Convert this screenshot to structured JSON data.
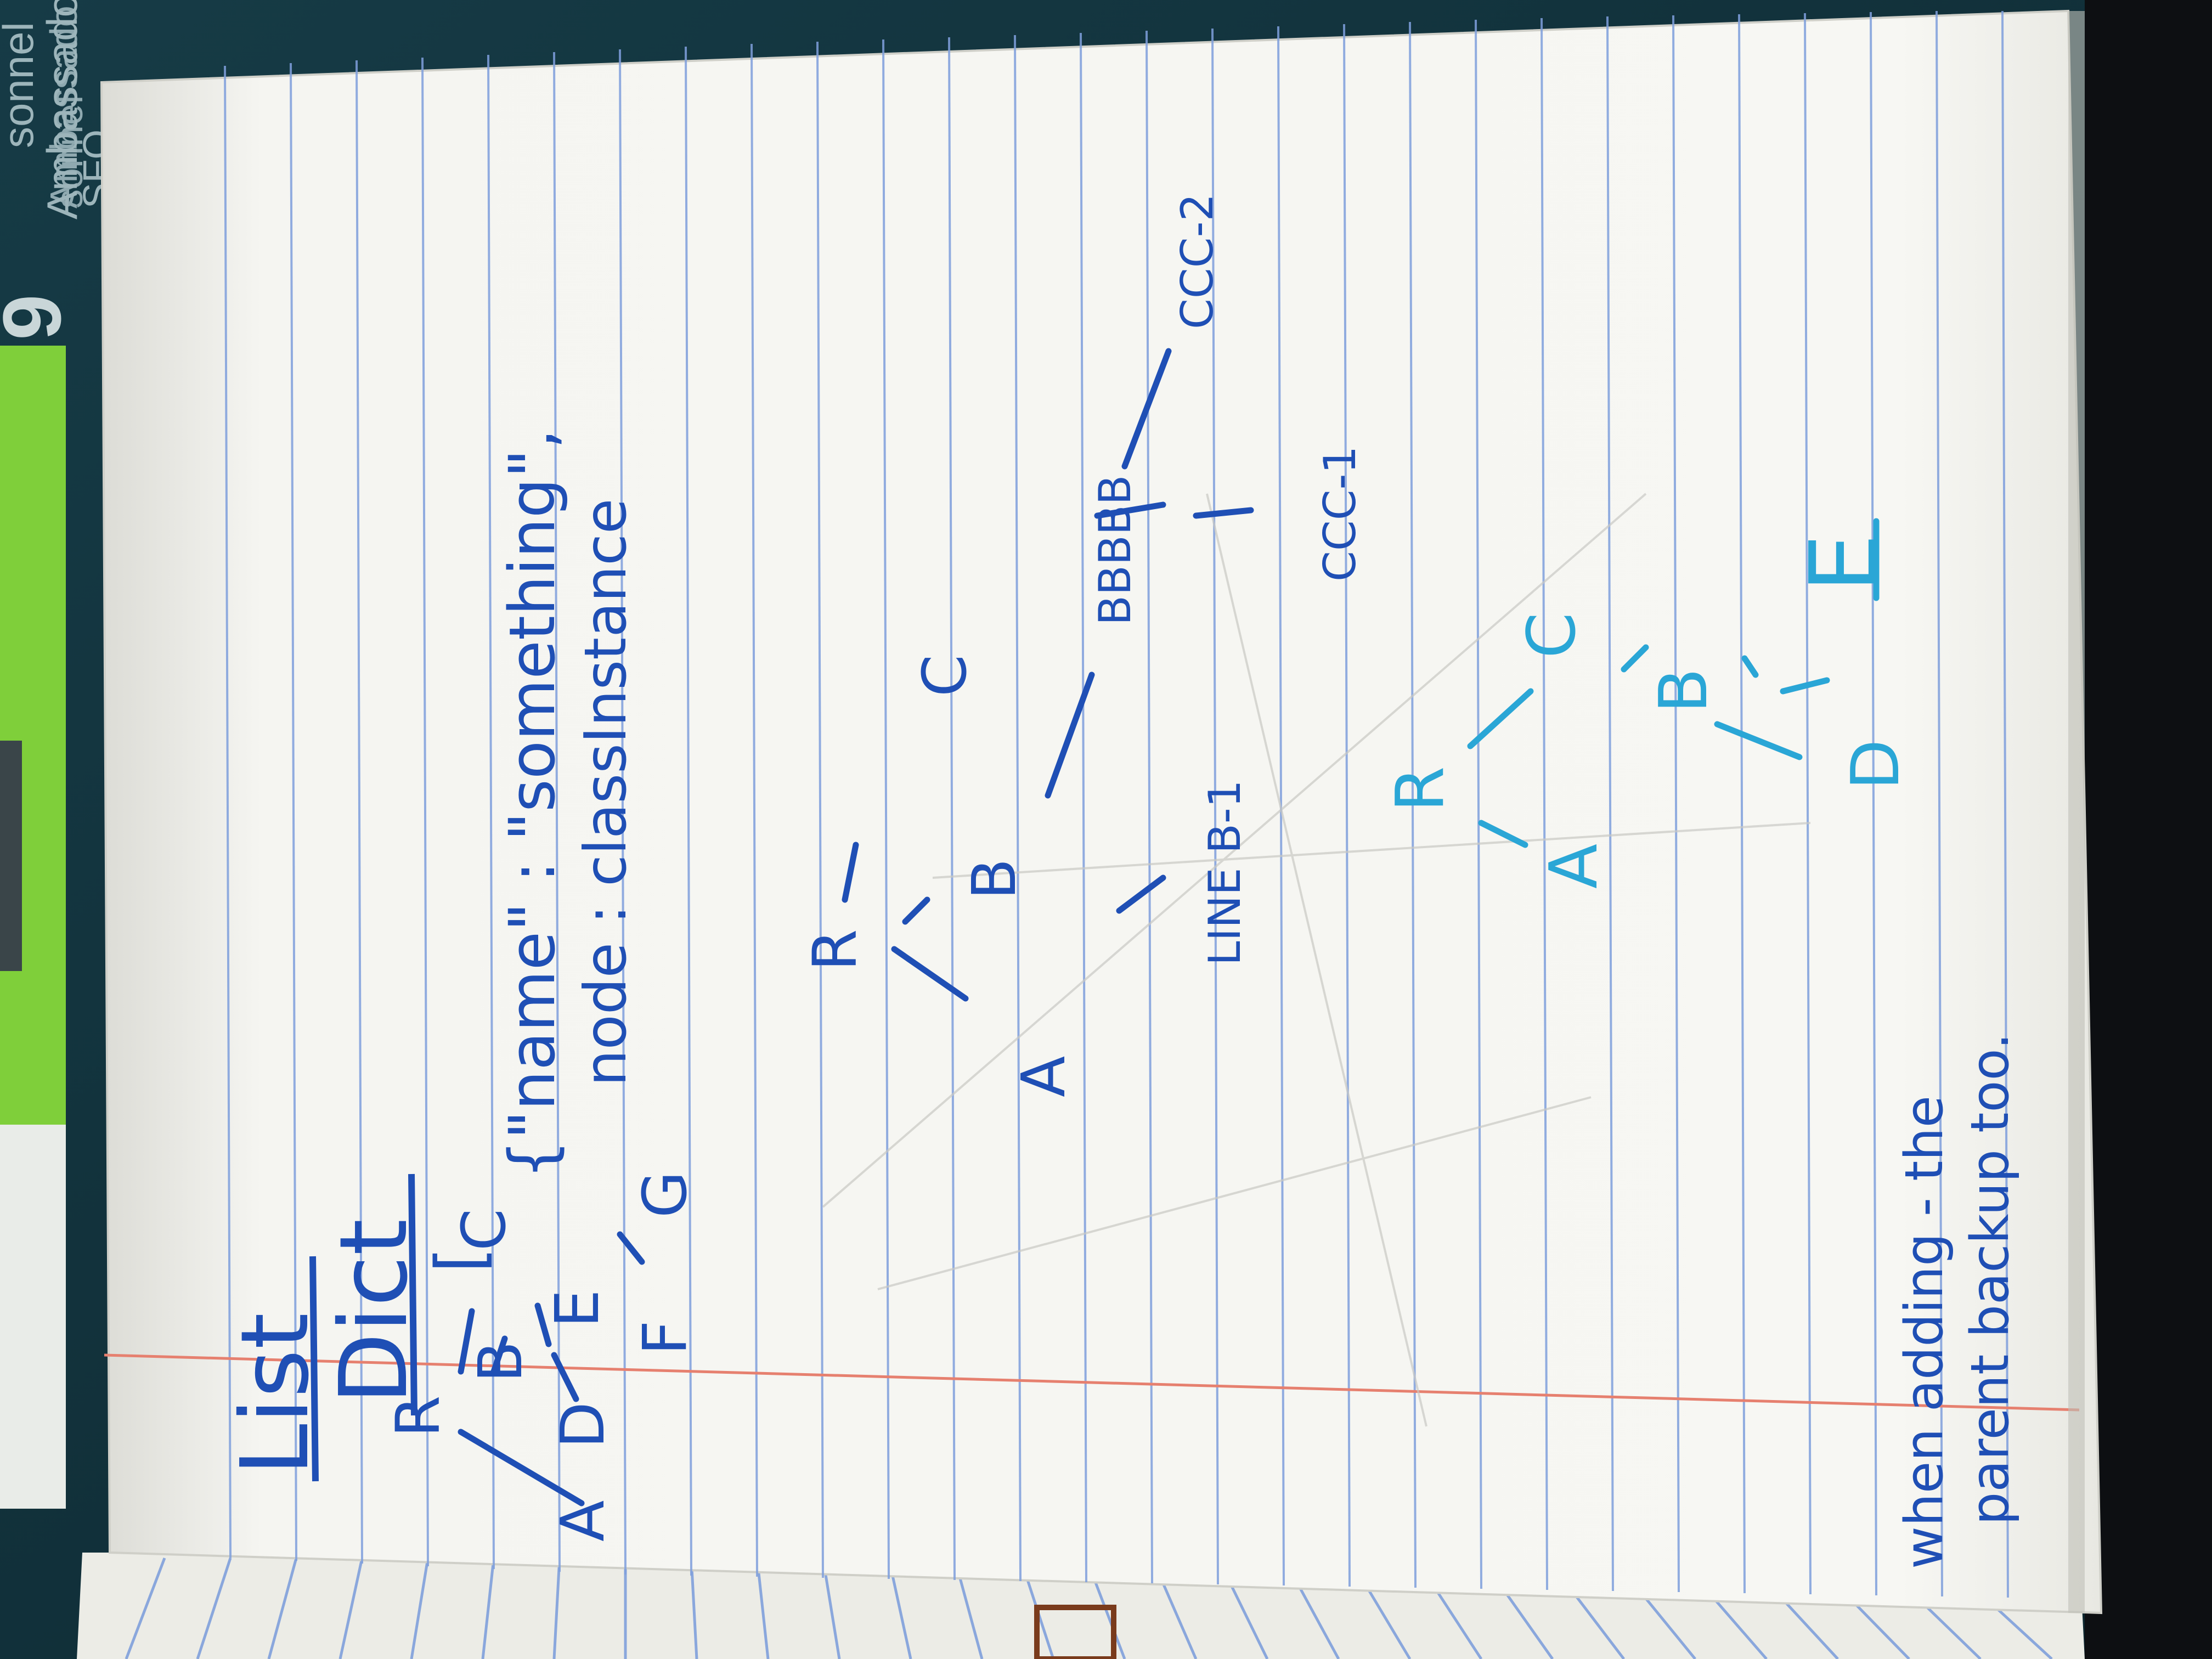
{
  "photo": {
    "subject": "notebook-page-photo",
    "colors": {
      "paper": "#f6f6f2",
      "rule_line": "#7f9fdc",
      "margin_line": "#e6806f",
      "ink_dark_blue": "#1f4fb5",
      "ink_light_blue": "#2aa6d6",
      "table_teal": "#15404d",
      "green_folder": "#7fcf3a"
    }
  },
  "notes": {
    "title_list": "List",
    "title_dict": "Dict",
    "bracket": "[",
    "dict_line1": "{\"name\" : \"something\",",
    "dict_line2": "node : classInstance",
    "footer_line1": "when adding - the",
    "footer_line2": "parent backup too."
  },
  "tree_one": {
    "nodes": [
      "R",
      "A",
      "B",
      "C",
      "D",
      "E",
      "F",
      "G"
    ]
  },
  "tree_two": {
    "nodes": [
      "R",
      "A",
      "B",
      "C",
      "LINE B-1",
      "BBBBB",
      "CCC-1",
      "CCC-2"
    ]
  },
  "tree_three": {
    "nodes": [
      "R",
      "A",
      "B",
      "C",
      "D",
      "E"
    ]
  },
  "background_sign": {
    "line1": "sonnel",
    "line2": "Ambassado",
    "line3": "SFO",
    "number": "9"
  }
}
